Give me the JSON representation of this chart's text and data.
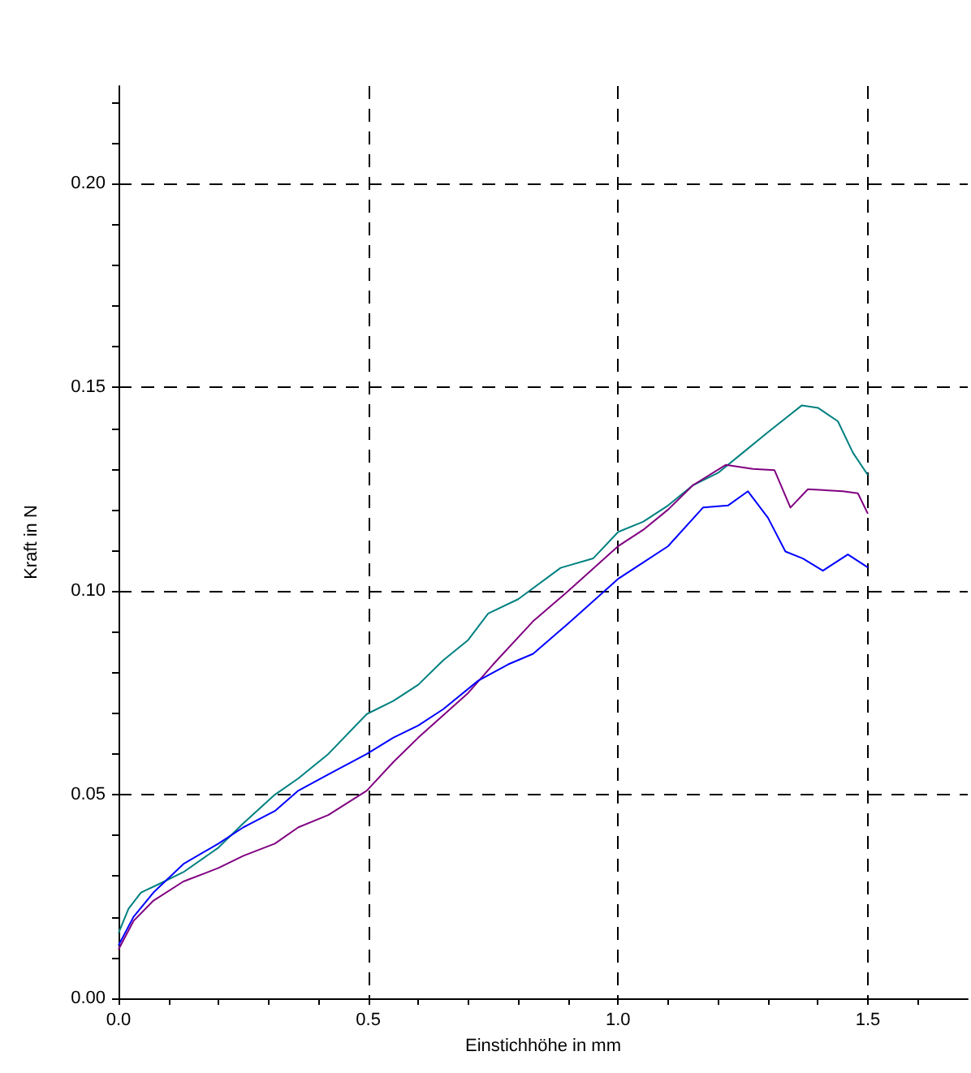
{
  "chart_data": {
    "type": "line",
    "xlabel": "Einstichhöhe in mm",
    "ylabel": "Kraft in N",
    "xlim": [
      0,
      1.7
    ],
    "ylim": [
      0,
      0.224
    ],
    "xticks": [
      {
        "value": 0,
        "label": "0.0"
      },
      {
        "value": 0.1,
        "label": null
      },
      {
        "value": 0.2,
        "label": null
      },
      {
        "value": 0.3,
        "label": null
      },
      {
        "value": 0.4,
        "label": null
      },
      {
        "value": 0.5,
        "label": "0.5"
      },
      {
        "value": 0.6,
        "label": null
      },
      {
        "value": 0.7,
        "label": null
      },
      {
        "value": 0.8,
        "label": null
      },
      {
        "value": 0.9,
        "label": null
      },
      {
        "value": 1.0,
        "label": "1.0"
      },
      {
        "value": 1.1,
        "label": null
      },
      {
        "value": 1.2,
        "label": null
      },
      {
        "value": 1.3,
        "label": null
      },
      {
        "value": 1.4,
        "label": null
      },
      {
        "value": 1.5,
        "label": "1.5"
      },
      {
        "value": 1.6,
        "label": null
      }
    ],
    "yticks": [
      {
        "value": 0,
        "label": "0.00"
      },
      {
        "value": 0.01,
        "label": null
      },
      {
        "value": 0.02,
        "label": null
      },
      {
        "value": 0.03,
        "label": null
      },
      {
        "value": 0.04,
        "label": null
      },
      {
        "value": 0.05,
        "label": "0.05"
      },
      {
        "value": 0.06,
        "label": null
      },
      {
        "value": 0.07,
        "label": null
      },
      {
        "value": 0.08,
        "label": null
      },
      {
        "value": 0.09,
        "label": null
      },
      {
        "value": 0.1,
        "label": "0.10"
      },
      {
        "value": 0.11,
        "label": null
      },
      {
        "value": 0.12,
        "label": null
      },
      {
        "value": 0.13,
        "label": null
      },
      {
        "value": 0.14,
        "label": null
      },
      {
        "value": 0.15,
        "label": "0.15"
      },
      {
        "value": 0.16,
        "label": null
      },
      {
        "value": 0.17,
        "label": null
      },
      {
        "value": 0.18,
        "label": null
      },
      {
        "value": 0.19,
        "label": null
      },
      {
        "value": 0.2,
        "label": "0.20"
      },
      {
        "value": 0.21,
        "label": null
      },
      {
        "value": 0.22,
        "label": null
      }
    ],
    "grid": true,
    "marker": "none",
    "series": [
      {
        "color": "#008080",
        "x": [
          0,
          0.02,
          0.045,
          0.08,
          0.13,
          0.2,
          0.25,
          0.313,
          0.36,
          0.42,
          0.497,
          0.55,
          0.6,
          0.65,
          0.7,
          0.74,
          0.8,
          0.885,
          0.95,
          1.0,
          1.05,
          1.1,
          1.15,
          1.2,
          1.25,
          1.3,
          1.368,
          1.4,
          1.44,
          1.47,
          1.5
        ],
        "values": [
          0.016,
          0.022,
          0.026,
          0.028,
          0.031,
          0.037,
          0.043,
          0.05,
          0.054,
          0.06,
          0.0698,
          0.073,
          0.077,
          0.083,
          0.088,
          0.0945,
          0.098,
          0.1057,
          0.108,
          0.1145,
          0.117,
          0.121,
          0.126,
          0.129,
          0.134,
          0.139,
          0.1456,
          0.145,
          0.1417,
          0.134,
          0.1285
        ]
      },
      {
        "color": "#800080",
        "x": [
          0,
          0.03,
          0.07,
          0.13,
          0.2,
          0.25,
          0.313,
          0.36,
          0.42,
          0.497,
          0.55,
          0.6,
          0.7,
          0.75,
          0.83,
          0.9,
          1.0,
          1.05,
          1.1,
          1.15,
          1.216,
          1.27,
          1.313,
          1.345,
          1.38,
          1.45,
          1.48,
          1.5
        ],
        "values": [
          0.012,
          0.019,
          0.024,
          0.0287,
          0.032,
          0.035,
          0.038,
          0.042,
          0.045,
          0.051,
          0.058,
          0.064,
          0.075,
          0.082,
          0.0926,
          0.1,
          0.111,
          0.115,
          0.12,
          0.126,
          0.131,
          0.13,
          0.1297,
          0.1205,
          0.125,
          0.1245,
          0.124,
          0.119
        ]
      },
      {
        "color": "#0000ff",
        "x": [
          0,
          0.03,
          0.07,
          0.13,
          0.2,
          0.25,
          0.313,
          0.36,
          0.42,
          0.497,
          0.55,
          0.6,
          0.65,
          0.72,
          0.78,
          0.83,
          0.9,
          1.0,
          1.05,
          1.1,
          1.17,
          1.22,
          1.26,
          1.3,
          1.335,
          1.37,
          1.41,
          1.46,
          1.5
        ],
        "values": [
          0.013,
          0.02,
          0.026,
          0.033,
          0.038,
          0.042,
          0.046,
          0.051,
          0.055,
          0.06,
          0.064,
          0.067,
          0.071,
          0.078,
          0.082,
          0.0846,
          0.092,
          0.103,
          0.107,
          0.111,
          0.1205,
          0.121,
          0.1245,
          0.118,
          0.1097,
          0.108,
          0.105,
          0.109,
          0.1058
        ]
      }
    ]
  }
}
